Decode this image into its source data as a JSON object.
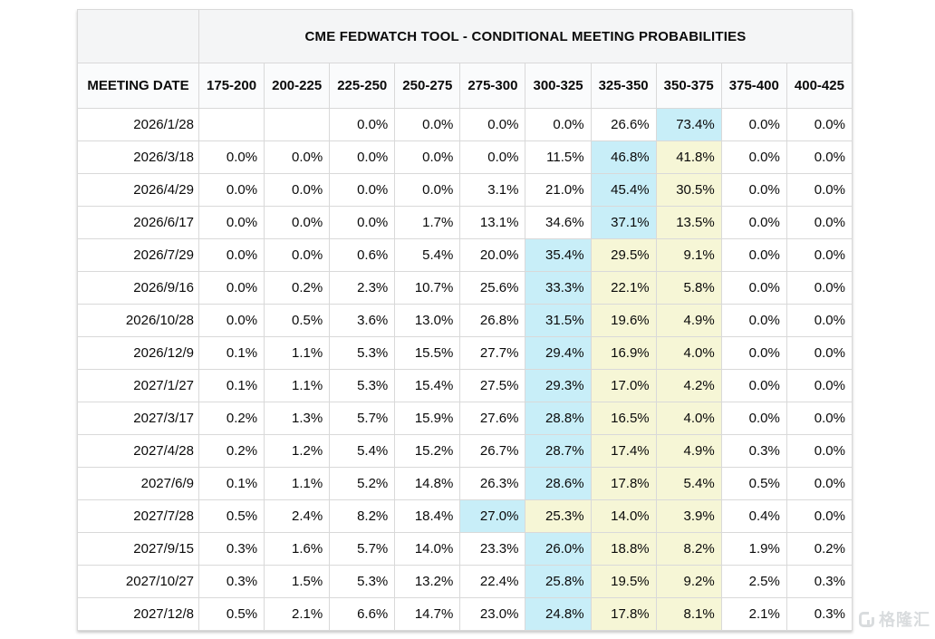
{
  "colors": {
    "highlight_cyan": "#c8eef8",
    "highlight_yellow": "#f6f6d6",
    "title_row_bg": "#f4f5f6",
    "header_row_bg": "#fafbfc",
    "grid_border": "#d9d9d9",
    "watermark_gray": "#d9dcde"
  },
  "watermark": {
    "logo_icon": "gelonghui-logo",
    "text": "格隆汇"
  },
  "chart_data": {
    "type": "table",
    "title": "CME FEDWATCH TOOL - CONDITIONAL MEETING PROBABILITIES",
    "columns": [
      "MEETING DATE",
      "175-200",
      "200-225",
      "225-250",
      "250-275",
      "275-300",
      "300-325",
      "325-350",
      "350-375",
      "375-400",
      "400-425"
    ],
    "highlight_legend": {
      "cyan": "highest probability in row",
      "yellow": "probabilities above highest-probability target range"
    },
    "rows": [
      {
        "date": "2026/1/28",
        "values": [
          "",
          "",
          "0.0%",
          "0.0%",
          "0.0%",
          "0.0%",
          "26.6%",
          "73.4%",
          "0.0%",
          "0.0%"
        ],
        "highlights": [
          "",
          "",
          "",
          "",
          "",
          "",
          "",
          "cyan",
          "",
          ""
        ]
      },
      {
        "date": "2026/3/18",
        "values": [
          "0.0%",
          "0.0%",
          "0.0%",
          "0.0%",
          "0.0%",
          "11.5%",
          "46.8%",
          "41.8%",
          "0.0%",
          "0.0%"
        ],
        "highlights": [
          "",
          "",
          "",
          "",
          "",
          "",
          "cyan",
          "yellow",
          "",
          ""
        ]
      },
      {
        "date": "2026/4/29",
        "values": [
          "0.0%",
          "0.0%",
          "0.0%",
          "0.0%",
          "3.1%",
          "21.0%",
          "45.4%",
          "30.5%",
          "0.0%",
          "0.0%"
        ],
        "highlights": [
          "",
          "",
          "",
          "",
          "",
          "",
          "cyan",
          "yellow",
          "",
          ""
        ]
      },
      {
        "date": "2026/6/17",
        "values": [
          "0.0%",
          "0.0%",
          "0.0%",
          "1.7%",
          "13.1%",
          "34.6%",
          "37.1%",
          "13.5%",
          "0.0%",
          "0.0%"
        ],
        "highlights": [
          "",
          "",
          "",
          "",
          "",
          "",
          "cyan",
          "yellow",
          "",
          ""
        ]
      },
      {
        "date": "2026/7/29",
        "values": [
          "0.0%",
          "0.0%",
          "0.6%",
          "5.4%",
          "20.0%",
          "35.4%",
          "29.5%",
          "9.1%",
          "0.0%",
          "0.0%"
        ],
        "highlights": [
          "",
          "",
          "",
          "",
          "",
          "cyan",
          "yellow",
          "yellow",
          "",
          ""
        ]
      },
      {
        "date": "2026/9/16",
        "values": [
          "0.0%",
          "0.2%",
          "2.3%",
          "10.7%",
          "25.6%",
          "33.3%",
          "22.1%",
          "5.8%",
          "0.0%",
          "0.0%"
        ],
        "highlights": [
          "",
          "",
          "",
          "",
          "",
          "cyan",
          "yellow",
          "yellow",
          "",
          ""
        ]
      },
      {
        "date": "2026/10/28",
        "values": [
          "0.0%",
          "0.5%",
          "3.6%",
          "13.0%",
          "26.8%",
          "31.5%",
          "19.6%",
          "4.9%",
          "0.0%",
          "0.0%"
        ],
        "highlights": [
          "",
          "",
          "",
          "",
          "",
          "cyan",
          "yellow",
          "yellow",
          "",
          ""
        ]
      },
      {
        "date": "2026/12/9",
        "values": [
          "0.1%",
          "1.1%",
          "5.3%",
          "15.5%",
          "27.7%",
          "29.4%",
          "16.9%",
          "4.0%",
          "0.0%",
          "0.0%"
        ],
        "highlights": [
          "",
          "",
          "",
          "",
          "",
          "cyan",
          "yellow",
          "yellow",
          "",
          ""
        ]
      },
      {
        "date": "2027/1/27",
        "values": [
          "0.1%",
          "1.1%",
          "5.3%",
          "15.4%",
          "27.5%",
          "29.3%",
          "17.0%",
          "4.2%",
          "0.0%",
          "0.0%"
        ],
        "highlights": [
          "",
          "",
          "",
          "",
          "",
          "cyan",
          "yellow",
          "yellow",
          "",
          ""
        ]
      },
      {
        "date": "2027/3/17",
        "values": [
          "0.2%",
          "1.3%",
          "5.7%",
          "15.9%",
          "27.6%",
          "28.8%",
          "16.5%",
          "4.0%",
          "0.0%",
          "0.0%"
        ],
        "highlights": [
          "",
          "",
          "",
          "",
          "",
          "cyan",
          "yellow",
          "yellow",
          "",
          ""
        ]
      },
      {
        "date": "2027/4/28",
        "values": [
          "0.2%",
          "1.2%",
          "5.4%",
          "15.2%",
          "26.7%",
          "28.7%",
          "17.4%",
          "4.9%",
          "0.3%",
          "0.0%"
        ],
        "highlights": [
          "",
          "",
          "",
          "",
          "",
          "cyan",
          "yellow",
          "yellow",
          "",
          ""
        ]
      },
      {
        "date": "2027/6/9",
        "values": [
          "0.1%",
          "1.1%",
          "5.2%",
          "14.8%",
          "26.3%",
          "28.6%",
          "17.8%",
          "5.4%",
          "0.5%",
          "0.0%"
        ],
        "highlights": [
          "",
          "",
          "",
          "",
          "",
          "cyan",
          "yellow",
          "yellow",
          "",
          ""
        ]
      },
      {
        "date": "2027/7/28",
        "values": [
          "0.5%",
          "2.4%",
          "8.2%",
          "18.4%",
          "27.0%",
          "25.3%",
          "14.0%",
          "3.9%",
          "0.4%",
          "0.0%"
        ],
        "highlights": [
          "",
          "",
          "",
          "",
          "cyan",
          "yellow",
          "yellow",
          "yellow",
          "",
          ""
        ]
      },
      {
        "date": "2027/9/15",
        "values": [
          "0.3%",
          "1.6%",
          "5.7%",
          "14.0%",
          "23.3%",
          "26.0%",
          "18.8%",
          "8.2%",
          "1.9%",
          "0.2%"
        ],
        "highlights": [
          "",
          "",
          "",
          "",
          "",
          "cyan",
          "yellow",
          "yellow",
          "",
          ""
        ]
      },
      {
        "date": "2027/10/27",
        "values": [
          "0.3%",
          "1.5%",
          "5.3%",
          "13.2%",
          "22.4%",
          "25.8%",
          "19.5%",
          "9.2%",
          "2.5%",
          "0.3%"
        ],
        "highlights": [
          "",
          "",
          "",
          "",
          "",
          "cyan",
          "yellow",
          "yellow",
          "",
          ""
        ]
      },
      {
        "date": "2027/12/8",
        "values": [
          "0.5%",
          "2.1%",
          "6.6%",
          "14.7%",
          "23.0%",
          "24.8%",
          "17.8%",
          "8.1%",
          "2.1%",
          "0.3%"
        ],
        "highlights": [
          "",
          "",
          "",
          "",
          "",
          "cyan",
          "yellow",
          "yellow",
          "",
          ""
        ]
      }
    ]
  }
}
